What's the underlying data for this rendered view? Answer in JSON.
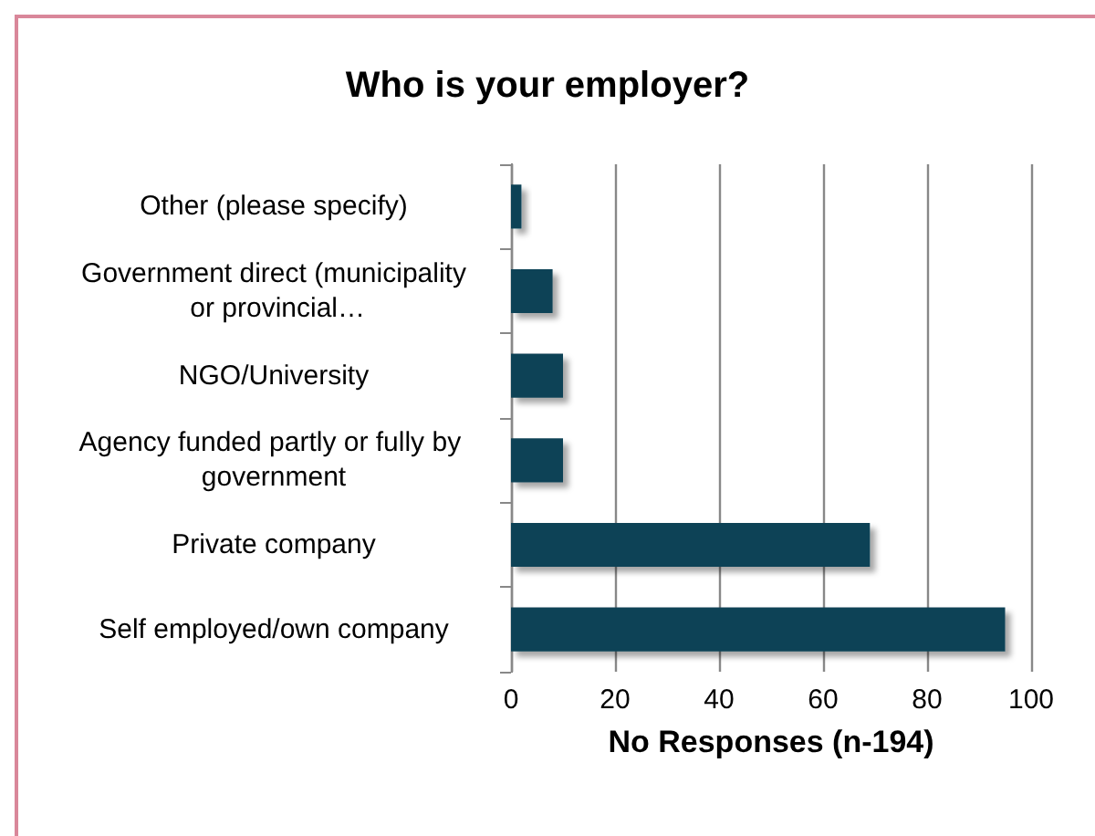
{
  "chart_data": {
    "type": "bar",
    "orientation": "horizontal",
    "title": "Who is your employer?",
    "xlabel": "No Responses (n-194)",
    "categories": [
      "Other (please specify)",
      "Government direct (municipality or provincial…",
      "NGO/University",
      "Agency funded partly or fully by government",
      "Private company",
      "Self employed/own company"
    ],
    "values": [
      2,
      8,
      10,
      10,
      69,
      95
    ],
    "color": "#0e4357",
    "xlim": [
      0,
      100
    ],
    "xticks": [
      0,
      20,
      40,
      60,
      80,
      100
    ],
    "grid": "x"
  }
}
